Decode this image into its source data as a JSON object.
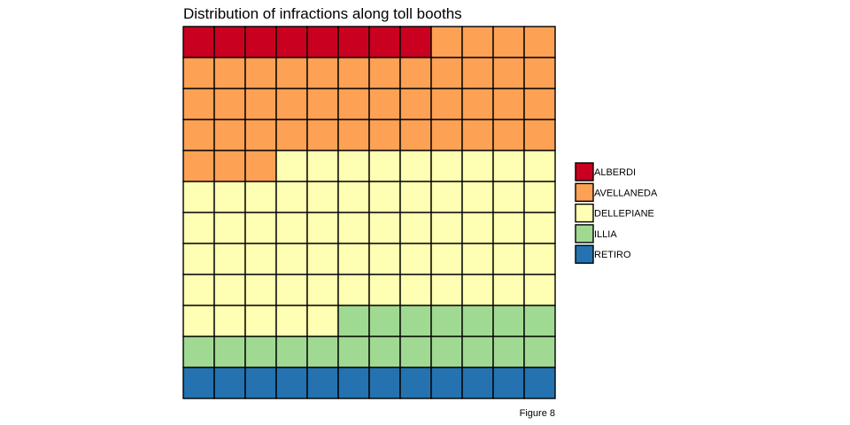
{
  "chart_data": {
    "type": "waffle",
    "title": "Distribution of infractions along toll booths",
    "caption": "Figure 8",
    "columns": 12,
    "rows": 12,
    "fill_order": "row-wise from top-left",
    "series": [
      {
        "name": "ALBERDI",
        "squares": 8,
        "color": "#ca0020"
      },
      {
        "name": "AVELLANEDA",
        "squares": 43,
        "color": "#fda155"
      },
      {
        "name": "DELLEPIANE",
        "squares": 62,
        "color": "#ffffb3"
      },
      {
        "name": "ILLIA",
        "squares": 19,
        "color": "#a0d992"
      },
      {
        "name": "RETIRO",
        "squares": 12,
        "color": "#2473b0"
      }
    ],
    "legend": {
      "position": "right"
    },
    "grid": false
  }
}
